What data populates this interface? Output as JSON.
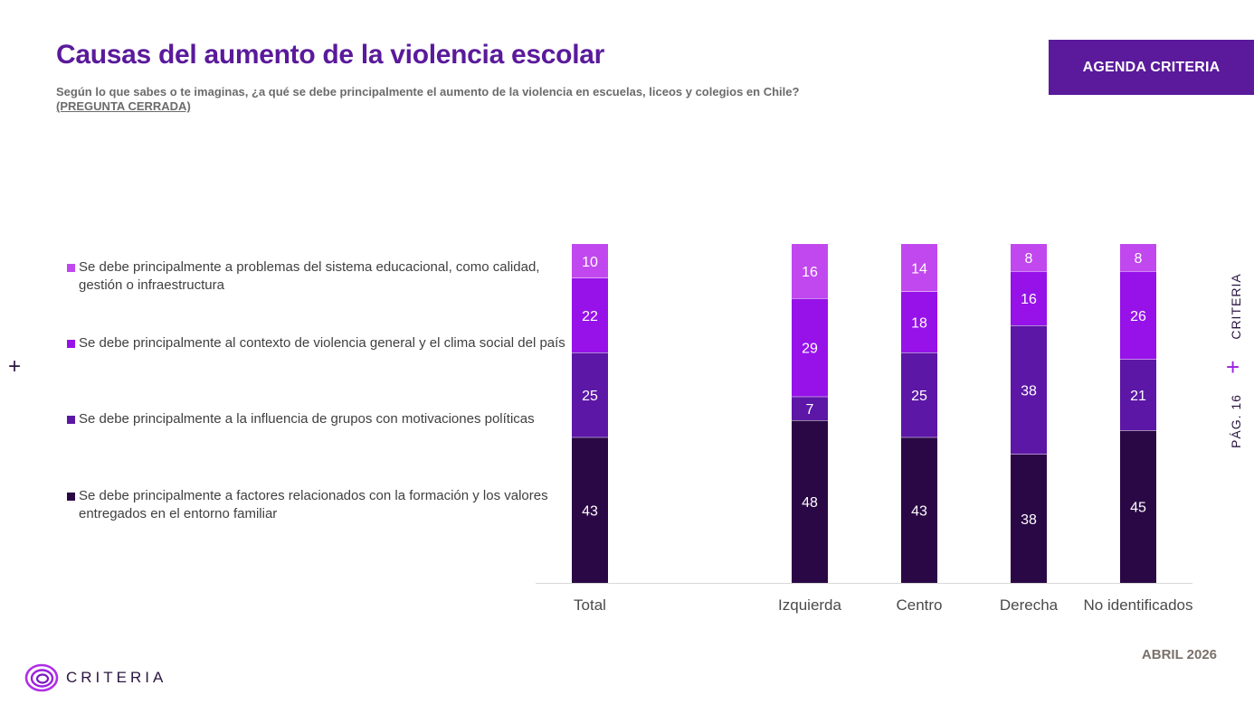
{
  "header": {
    "title": "Causas del aumento de la violencia escolar",
    "subtitle": "Según lo que sabes o te imaginas, ¿a qué se debe principalmente el aumento de la violencia en escuelas, liceos y colegios en Chile?",
    "question_type": "(PREGUNTA CERRADA)",
    "brand_box": "AGENDA CRITERIA"
  },
  "side": {
    "brand": "CRITERIA",
    "page": "PÁG. 16",
    "plus": "+"
  },
  "left_plus": "+",
  "footer": {
    "date": "ABRIL 2026",
    "logo": "CRITERIA"
  },
  "colors": {
    "title": "#5a1a9b",
    "brand_box": "#5a1a9b",
    "accent_plus": "#9b20e0",
    "axis": "#d9d9d9"
  },
  "icons": {
    "logo": "criteria-swirl-icon"
  },
  "chart_data": {
    "type": "bar",
    "stacked": true,
    "orientation": "vertical",
    "categories": [
      "Total",
      "Izquierda",
      "Centro",
      "Derecha",
      "No identificados"
    ],
    "ylim": [
      0,
      100
    ],
    "grid": false,
    "legend_position": "left",
    "series": [
      {
        "name": "Se debe principalmente a factores relacionados con la formación y los valores entregados en el entorno familiar",
        "color": "#2a0845",
        "values": [
          43,
          48,
          43,
          38,
          45
        ]
      },
      {
        "name": "Se debe principalmente a la influencia de grupos con motivaciones políticas",
        "color": "#5c17a6",
        "values": [
          25,
          7,
          25,
          38,
          21
        ]
      },
      {
        "name": "Se debe principalmente al contexto de violencia general y el clima social del país",
        "color": "#9612e8",
        "values": [
          22,
          29,
          18,
          16,
          26
        ]
      },
      {
        "name": "Se debe principalmente a problemas del sistema educacional, como calidad, gestión o infraestructura",
        "color": "#c148ee",
        "values": [
          10,
          16,
          14,
          8,
          8
        ]
      }
    ]
  }
}
